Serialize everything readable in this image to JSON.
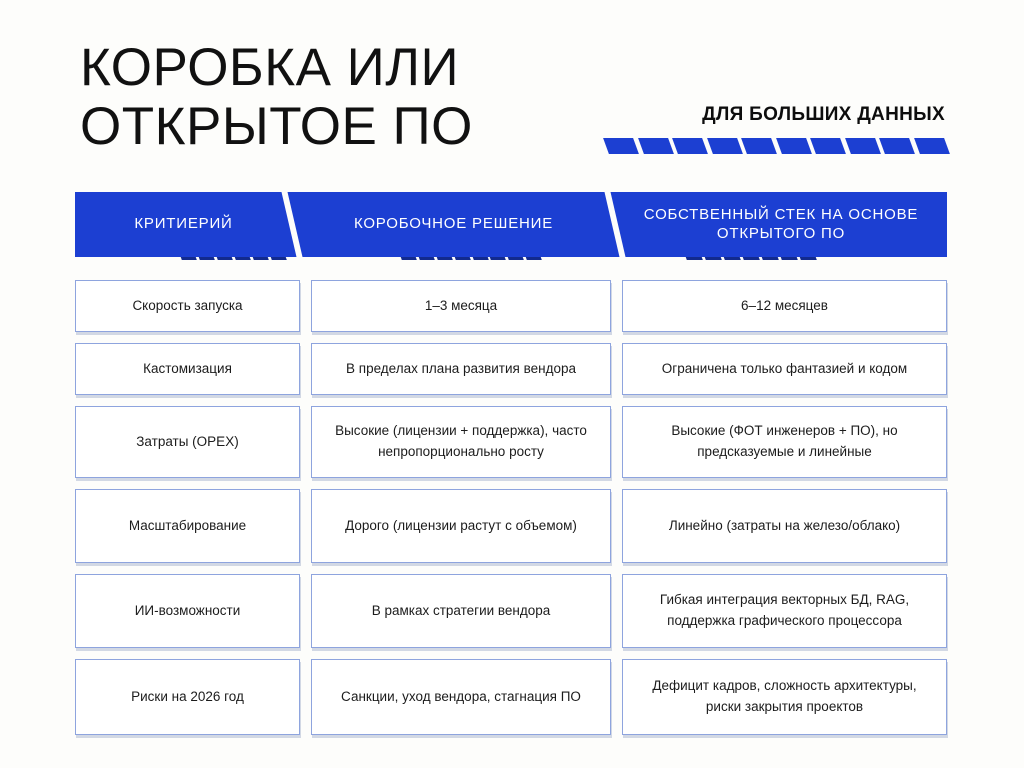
{
  "header": {
    "title_line1": "КОРОБКА ИЛИ",
    "title_line2": "ОТКРЫТОЕ ПО",
    "badge": "ДЛЯ БОЛЬШИХ ДАННЫХ"
  },
  "colors": {
    "accent_blue": "#1c3fd2",
    "dark_navy": "#122a8e",
    "cell_border": "#8ea4de",
    "title_text": "#111111",
    "cell_text": "#1c1c1c",
    "header_text": "#ffffff"
  },
  "table": {
    "column_headers": [
      "КРИТИЕРИЙ",
      "КОРОБОЧНОЕ РЕШЕНИЕ",
      "СОБСТВЕННЫЙ СТЕК НА ОСНОВЕ ОТКРЫТОГО ПО"
    ],
    "rows": [
      [
        "Скорость запуска",
        "1–3 месяца",
        "6–12 месяцев"
      ],
      [
        "Кастомизация",
        "В пределах плана развития вендора",
        "Ограничена только фантазией и кодом"
      ],
      [
        "Затраты (OPEX)",
        "Высокие (лицензии + поддержка), часто непропорционально росту",
        "Высокие (ФОТ инженеров + ПО), но предсказуемые и линейные"
      ],
      [
        "Масштабирование",
        "Дорого (лицензии растут с объемом)",
        "Линейно (затраты на железо/облако)"
      ],
      [
        "ИИ-возможности",
        "В рамках стратегии вендора",
        "Гибкая интеграция векторных БД, RAG, поддержка графического процессора"
      ],
      [
        "Риски на 2026 год",
        "Санкции, уход вендора, стагнация ПО",
        "Дефицит кадров, сложность архитектуры, риски закрытия проектов"
      ]
    ]
  }
}
